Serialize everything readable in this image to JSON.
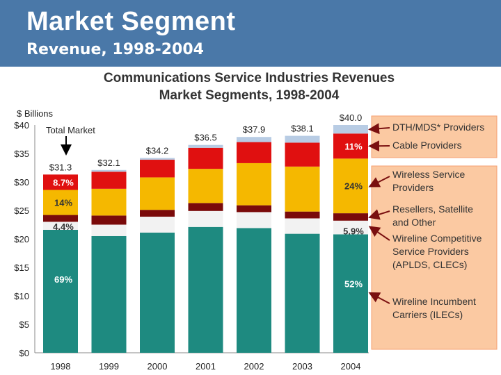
{
  "header": {
    "title": "Market Segment",
    "subtitle": "Revenue, 1998-2004"
  },
  "colors": {
    "header_bg": "#4a78a8",
    "callout_bg": "#fbc9a2",
    "callout_border": "#f5a071",
    "arrow": "#7a1010"
  },
  "chart_data": {
    "type": "bar",
    "stacked": true,
    "title": "Communications Service Industries Revenues",
    "subtitle": "Market Segments, 1998-2004",
    "ylabel": "$ Billions",
    "ylim": [
      0,
      40
    ],
    "y_ticks": [
      "$0",
      "$5",
      "$10",
      "$15",
      "$20",
      "$25",
      "$30",
      "$35",
      "$40"
    ],
    "categories": [
      "1998",
      "1999",
      "2000",
      "2001",
      "2002",
      "2003",
      "2004"
    ],
    "totals_labels": [
      "$31.3",
      "$32.1",
      "$34.2",
      "$36.5",
      "$37.9",
      "$38.1",
      "$40.0"
    ],
    "series": [
      {
        "name": "Wireline Incumbent Carriers (ILECs)",
        "color": "#1e8a80",
        "values": [
          21.6,
          20.5,
          21.1,
          22.1,
          21.9,
          20.9,
          20.8
        ]
      },
      {
        "name": "Wireline Competitive Service Providers (APLDS, CLECs)",
        "color": "#f2f2f2",
        "values": [
          1.4,
          2.0,
          2.8,
          2.8,
          2.8,
          2.7,
          2.4
        ]
      },
      {
        "name": "Resellers, Satellite and Other",
        "color": "#7a0a0a",
        "values": [
          1.2,
          1.6,
          1.2,
          1.4,
          1.2,
          1.2,
          1.3
        ]
      },
      {
        "name": "Wireless Service Providers",
        "color": "#f5b800",
        "values": [
          4.4,
          4.7,
          5.7,
          6.0,
          7.4,
          7.9,
          9.6
        ]
      },
      {
        "name": "Cable Providers",
        "color": "#e01010",
        "values": [
          2.7,
          3.0,
          3.1,
          3.7,
          3.7,
          4.2,
          4.4
        ]
      },
      {
        "name": "DTH/MDS* Providers",
        "color": "#b8cce4",
        "values": [
          0.0,
          0.3,
          0.3,
          0.5,
          0.9,
          1.2,
          1.5
        ]
      }
    ],
    "annotations": {
      "total_market_label": "Total Market",
      "pct_1998": [
        {
          "text": "69%",
          "series": 0
        },
        {
          "text": "4.4%",
          "series": 1
        },
        {
          "text": "14%",
          "series": 3
        },
        {
          "text": "8.7%",
          "series": 4
        }
      ],
      "pct_2004": [
        {
          "text": "52%",
          "series": 0
        },
        {
          "text": "5.9%",
          "series": 1
        },
        {
          "text": "24%",
          "series": 3
        },
        {
          "text": "11%",
          "series": 4
        }
      ]
    },
    "legend": {
      "placement": "right",
      "items": [
        {
          "lines": [
            "DTH/MDS* Providers"
          ],
          "series": 5
        },
        {
          "lines": [
            "Cable Providers"
          ],
          "series": 4
        },
        {
          "lines": [
            "Wireless Service",
            "Providers"
          ],
          "series": 3
        },
        {
          "lines": [
            "Resellers, Satellite",
            "and Other"
          ],
          "series": 2
        },
        {
          "lines": [
            "Wireline Competitive",
            "Service Providers",
            "(APLDS, CLECs)"
          ],
          "series": 1
        },
        {
          "lines": [
            "Wireline Incumbent",
            "Carriers (ILECs)"
          ],
          "series": 0
        }
      ]
    }
  }
}
